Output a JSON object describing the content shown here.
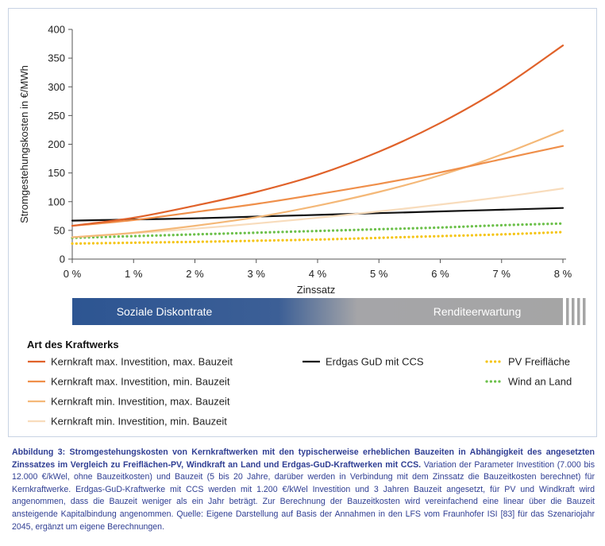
{
  "chart_data": {
    "type": "line",
    "title": "",
    "xlabel": "Zinssatz",
    "ylabel": "Stromgestehungskosten in €/MWh",
    "x": [
      0,
      1,
      2,
      3,
      4,
      5,
      6,
      7,
      8
    ],
    "xlim": [
      0,
      8
    ],
    "ylim": [
      0,
      400
    ],
    "x_ticks": [
      "0 %",
      "1 %",
      "2 %",
      "3 %",
      "4 %",
      "5 %",
      "6 %",
      "7 %",
      "8 %"
    ],
    "y_ticks": [
      0,
      50,
      100,
      150,
      200,
      250,
      300,
      350,
      400
    ],
    "grid": false,
    "series": [
      {
        "name": "Kernkraft max. Investition, max. Bauzeit",
        "values": [
          58,
          72,
          93,
          117,
          147,
          187,
          237,
          298,
          372
        ],
        "color": "#e0622a",
        "style": "solid"
      },
      {
        "name": "Kernkraft max. Investition, min. Bauzeit",
        "values": [
          58,
          68,
          82,
          96,
          113,
          131,
          151,
          174,
          197
        ],
        "color": "#ef8f4a",
        "style": "solid"
      },
      {
        "name": "Kernkraft min. Investition, max. Bauzeit",
        "values": [
          38,
          46,
          58,
          73,
          93,
          117,
          146,
          182,
          224
        ],
        "color": "#f4b878",
        "style": "solid"
      },
      {
        "name": "Kernkraft min. Investition, min. Bauzeit",
        "values": [
          38,
          45,
          53,
          62,
          72,
          83,
          95,
          108,
          123
        ],
        "color": "#f8dcbc",
        "style": "solid"
      },
      {
        "name": "Erdgas GuD mit CCS",
        "values": [
          67,
          69,
          71,
          74,
          77,
          80,
          83,
          86,
          89
        ],
        "color": "#111111",
        "style": "solid"
      },
      {
        "name": "PV Freifläche",
        "values": [
          27,
          28.5,
          30,
          32,
          34,
          37,
          40,
          43,
          47
        ],
        "color": "#f5c518",
        "style": "dotted"
      },
      {
        "name": "Wind an Land",
        "values": [
          37,
          40,
          43,
          46,
          49,
          52,
          55,
          59,
          62
        ],
        "color": "#6cc04a",
        "style": "dotted"
      }
    ],
    "band": {
      "left_label": "Soziale Diskontrate",
      "right_label": "Renditeerwartung"
    },
    "legend_title": "Art des Kraftwerks",
    "legend_placement": "bottom"
  },
  "caption": {
    "bold": "Abbildung 3: Stromgestehungskosten von Kernkraftwerken mit den typischerweise erheblichen Bauzeiten in Abhängigkeit des angesetzten Zinssatzes im Vergleich zu Freiflächen-PV, Windkraft an Land und Erdgas-GuD-Kraftwerken mit CCS.",
    "text": " Variation der Parameter Investition (7.000 bis 12.000 €/kWel, ohne Bauzeitkosten) und Bauzeit (5 bis 20 Jahre, darüber werden in Verbindung mit dem Zinssatz die Bauzeitkosten berechnet) für Kernkraftwerke. Erdgas-GuD-Kraftwerke mit CCS werden mit 1.200 €/kWel Investition und 3 Jahren Bauzeit angesetzt, für PV und Windkraft wird angenommen, dass die Bauzeit weniger als ein Jahr beträgt. Zur Berechnung der Bauzeitkosten wird vereinfachend eine linear über die Bauzeit ansteigende Kapitalbindung angenommen. Quelle: Eigene Darstellung auf Basis der Annahmen in den LFS vom Fraunhofer ISI [83] für das Szenariojahr 2045, ergänzt um eigene Berechnungen."
  }
}
